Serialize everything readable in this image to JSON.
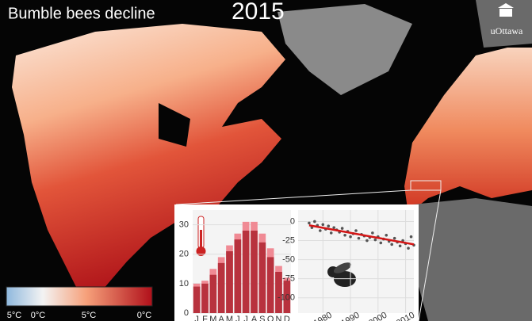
{
  "title": "Bumble bees decline",
  "year": "2015",
  "logo": "uOttawa",
  "legend": {
    "labels": [
      "5°C",
      "0°C",
      "5°C",
      "0°C"
    ]
  },
  "chart_data": [
    {
      "type": "bar",
      "categories": [
        "J",
        "F",
        "M",
        "A",
        "M",
        "J",
        "J",
        "A",
        "S",
        "O",
        "N",
        "D"
      ],
      "series": [
        {
          "color": "#f08a94",
          "values": [
            10,
            11,
            15,
            19,
            23,
            27,
            31,
            31,
            27,
            22,
            16,
            12
          ]
        },
        {
          "color": "#b8323e",
          "values": [
            9,
            10,
            13,
            17,
            21,
            25,
            28,
            28,
            24,
            19,
            14,
            11
          ]
        }
      ],
      "ylim": [
        0,
        35
      ],
      "yticks": [
        0,
        10,
        20,
        30
      ],
      "grid": true
    },
    {
      "type": "scatter",
      "x": [
        1975,
        1976,
        1977,
        1978,
        1979,
        1980,
        1981,
        1982,
        1983,
        1984,
        1985,
        1986,
        1987,
        1988,
        1989,
        1990,
        1991,
        1992,
        1993,
        1994,
        1995,
        1996,
        1997,
        1998,
        1999,
        2000,
        2001,
        2002,
        2003,
        2004,
        2005,
        2006,
        2007,
        2008,
        2009,
        2010,
        2011,
        2012,
        2013
      ],
      "values": [
        -2,
        -8,
        0,
        -5,
        -12,
        -4,
        -10,
        -6,
        -15,
        -8,
        -11,
        -14,
        -9,
        -18,
        -13,
        -20,
        -16,
        -12,
        -22,
        -17,
        -19,
        -25,
        -21,
        -15,
        -24,
        -20,
        -28,
        -23,
        -18,
        -26,
        -30,
        -22,
        -27,
        -32,
        -25,
        -29,
        -35,
        -20,
        -31
      ],
      "color": "#555555",
      "trend": {
        "x": [
          1975,
          2013
        ],
        "values": [
          -5,
          -30
        ],
        "color": "#d41515"
      },
      "xlim": [
        1971,
        2013
      ],
      "ylim": [
        -120,
        15
      ],
      "xticks": [
        1980,
        1990,
        2000,
        2010
      ],
      "yticks": [
        0,
        -25,
        -50,
        -75,
        -100
      ],
      "grid": true
    }
  ]
}
